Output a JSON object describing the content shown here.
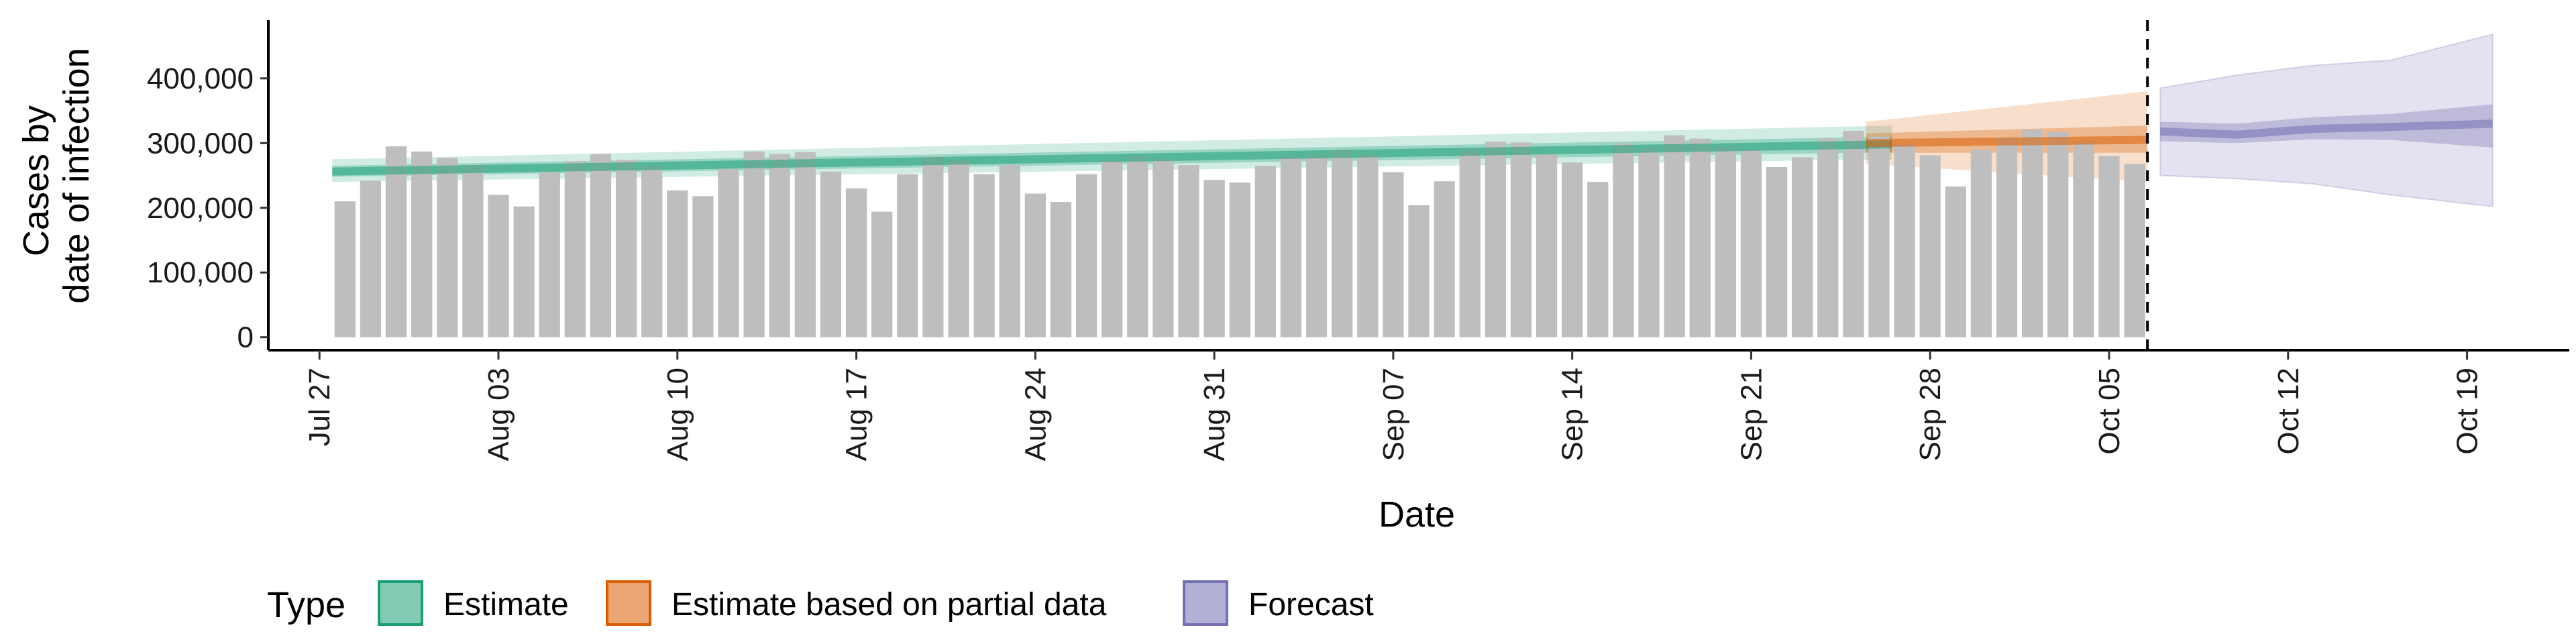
{
  "chart_data": {
    "type": "bar",
    "xlabel": "Date",
    "ylabel_lines": [
      "Cases by",
      "date of infection"
    ],
    "ylim": [
      -20000,
      490000
    ],
    "y_ticks": [
      0,
      100000,
      200000,
      300000,
      400000
    ],
    "y_tick_labels": [
      "0",
      "100,000",
      "200,000",
      "300,000",
      "400,000"
    ],
    "x_range": [
      "2020-07-25",
      "2020-10-23"
    ],
    "x_tick_dates": [
      "2020-07-27",
      "2020-08-03",
      "2020-08-10",
      "2020-08-17",
      "2020-08-24",
      "2020-08-31",
      "2020-09-07",
      "2020-09-14",
      "2020-09-21",
      "2020-09-28",
      "2020-10-05",
      "2020-10-12",
      "2020-10-19"
    ],
    "x_tick_labels": [
      "Jul 27",
      "Aug 03",
      "Aug 10",
      "Aug 17",
      "Aug 24",
      "Aug 31",
      "Sep 07",
      "Sep 14",
      "Sep 21",
      "Sep 28",
      "Oct 05",
      "Oct 12",
      "Oct 19"
    ],
    "cutoff_date": "2020-10-06",
    "bars": {
      "start_date": "2020-07-28",
      "color": "#bebebe",
      "values": [
        210000,
        242000,
        295000,
        287000,
        277000,
        266000,
        220000,
        202000,
        255000,
        272000,
        283000,
        274000,
        265000,
        227000,
        218000,
        260000,
        287000,
        283000,
        286000,
        256000,
        230000,
        194000,
        252000,
        279000,
        274000,
        252000,
        266000,
        222000,
        209000,
        252000,
        273000,
        280000,
        275000,
        266000,
        243000,
        239000,
        265000,
        280000,
        282000,
        290000,
        283000,
        255000,
        204000,
        241000,
        290000,
        302000,
        301000,
        283000,
        270000,
        240000,
        300000,
        292000,
        312000,
        307000,
        295000,
        290000,
        263000,
        278000,
        307000,
        319000,
        310000,
        298000,
        281000,
        233000,
        290000,
        308000,
        321000,
        317000,
        302000,
        280000,
        268000
      ]
    },
    "series": [
      {
        "name": "Estimate",
        "color": "#1b9e77",
        "start_date": "2020-07-28",
        "end_date": "2020-09-26",
        "median": [
          256000,
          298000
        ],
        "inner": [
          [
            248000,
            265000
          ],
          [
            286000,
            310000
          ]
        ],
        "outer": [
          [
            240000,
            275000
          ],
          [
            275000,
            327000
          ]
        ]
      },
      {
        "name": "Estimate based on partial data",
        "color": "#d95f02",
        "start_date": "2020-09-26",
        "end_date": "2020-10-06",
        "median": [
          300000,
          305000
        ],
        "inner": [
          [
            285000,
            315000
          ],
          [
            285000,
            327000
          ]
        ],
        "outer": [
          [
            268000,
            333000
          ],
          [
            240000,
            380000
          ]
        ]
      },
      {
        "name": "Forecast",
        "color": "#7570b3",
        "start_date": "2020-10-07",
        "end_date": "2020-10-20",
        "median_pts": [
          [
            0,
            318000
          ],
          [
            3,
            313000
          ],
          [
            6,
            322000
          ],
          [
            9,
            325000
          ],
          [
            13,
            330000
          ]
        ],
        "inner_pts": [
          [
            0,
            303000,
            333000
          ],
          [
            3,
            300000,
            330000
          ],
          [
            6,
            306000,
            340000
          ],
          [
            9,
            305000,
            345000
          ],
          [
            13,
            293000,
            360000
          ]
        ],
        "outer_pts": [
          [
            0,
            250000,
            385000
          ],
          [
            3,
            245000,
            405000
          ],
          [
            6,
            237000,
            420000
          ],
          [
            9,
            220000,
            428000
          ],
          [
            13,
            202000,
            468000
          ]
        ]
      }
    ],
    "legend": {
      "title": "Type",
      "position": "bottom",
      "entries": [
        "Estimate",
        "Estimate based on partial data",
        "Forecast"
      ]
    }
  }
}
